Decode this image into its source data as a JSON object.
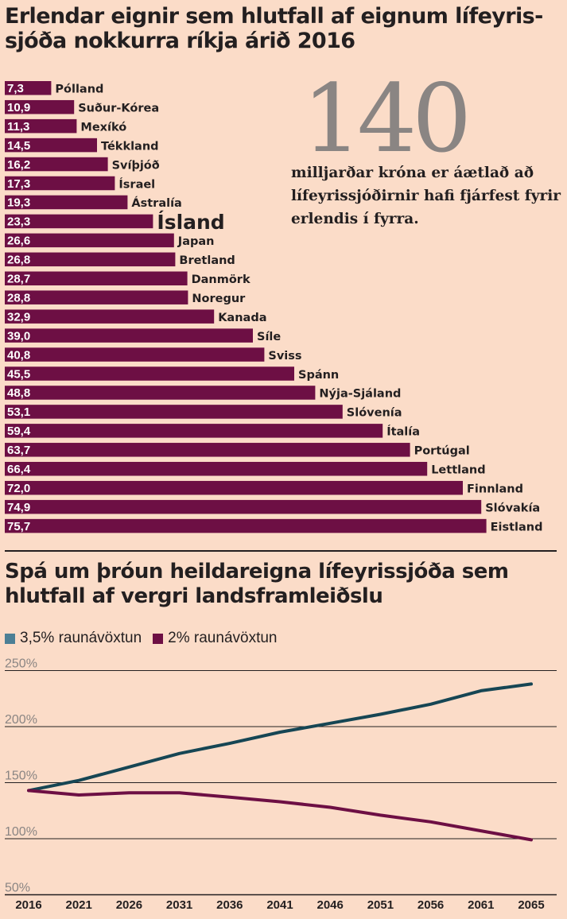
{
  "header": {
    "title": "Erlendar eignir sem hlutfall af eignum lífeyris-sjóða nokkurra ríkja árið 2016"
  },
  "callout": {
    "number": "140",
    "text": "milljarðar króna er áætlað að lífeyrissjóðirnir hafi fjárfest fyrir erlendis í fyrra."
  },
  "section2": {
    "title": "Spá um þróun heildareigna lífeyrissjóða sem hlutfall af vergri landsframleiðslu"
  },
  "colors": {
    "background": "#fbdcc8",
    "bar": "#6d0f44",
    "series_high": "#164654",
    "series_low": "#6d0f44",
    "legend_high": "#4c7f95",
    "grid": "#231f20"
  },
  "chart_data": [
    {
      "type": "bar",
      "orientation": "horizontal",
      "title": "Erlendar eignir sem hlutfall af eignum lífeyris-sjóða nokkurra ríkja árið 2016",
      "categories": [
        "Pólland",
        "Suður-Kórea",
        "Mexíkó",
        "Tékkland",
        "Svíþjóð",
        "Ísrael",
        "Ástralía",
        "Ísland",
        "Japan",
        "Bretland",
        "Danmörk",
        "Noregur",
        "Kanada",
        "Síle",
        "Sviss",
        "Spánn",
        "Nýja-Sjáland",
        "Slóvenía",
        "Ítalía",
        "Portúgal",
        "Lettland",
        "Finnland",
        "Slóvakía",
        "Eistland"
      ],
      "value_labels": [
        "7,3",
        "10,9",
        "11,3",
        "14,5",
        "16,2",
        "17,3",
        "19,3",
        "23,3",
        "26,6",
        "26,8",
        "28,7",
        "28,8",
        "32,9",
        "39,0",
        "40,8",
        "45,5",
        "48,8",
        "53,1",
        "59,4",
        "63,7",
        "66,4",
        "72,0",
        "74,9",
        "75,7"
      ],
      "values": [
        7.3,
        10.9,
        11.3,
        14.5,
        16.2,
        17.3,
        19.3,
        23.3,
        26.6,
        26.8,
        28.7,
        28.8,
        32.9,
        39.0,
        40.8,
        45.5,
        48.8,
        53.1,
        59.4,
        63.7,
        66.4,
        72.0,
        74.9,
        75.7
      ],
      "highlight": "Ísland"
    },
    {
      "type": "line",
      "title": "Spá um þróun heildareigna lífeyrissjóða sem hlutfall af vergri landsframleiðslu",
      "x": [
        "2016",
        "2021",
        "2026",
        "2031",
        "2036",
        "2041",
        "2046",
        "2051",
        "2056",
        "2061",
        "2065"
      ],
      "yticks": [
        "250%",
        "200%",
        "150%",
        "100%",
        "50%"
      ],
      "ytick_values": [
        250,
        200,
        150,
        100,
        50
      ],
      "ylim": [
        50,
        250
      ],
      "grid": true,
      "legend_position": "top-left",
      "series": [
        {
          "name": "3,5% raunávöxtun",
          "values": [
            143,
            152,
            164,
            176,
            185,
            195,
            203,
            211,
            220,
            232,
            238
          ]
        },
        {
          "name": "2% raunávöxtun",
          "values": [
            143,
            139,
            141,
            141,
            137,
            133,
            128,
            121,
            115,
            107,
            99
          ]
        }
      ]
    }
  ]
}
